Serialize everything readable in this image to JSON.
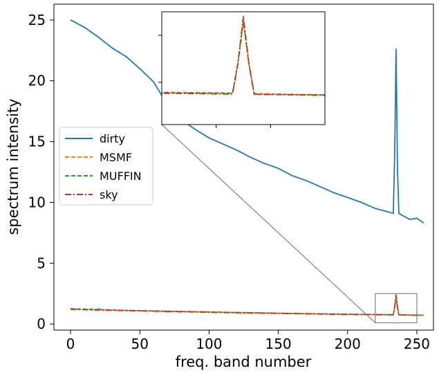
{
  "chart_data": {
    "type": "line",
    "xlabel": "freq. band number",
    "ylabel": "spectrum intensity",
    "xlim": [
      -12,
      262
    ],
    "ylim": [
      -0.5,
      26.3
    ],
    "xticks": [
      0,
      50,
      100,
      150,
      200,
      250
    ],
    "yticks": [
      0,
      5,
      10,
      15,
      20,
      25
    ],
    "legend": {
      "placement": "center-left"
    },
    "series": [
      {
        "name": "dirty",
        "color": "#1f77b4",
        "style": "solid",
        "points": [
          [
            0,
            25.0
          ],
          [
            10,
            24.4
          ],
          [
            20,
            23.6
          ],
          [
            30,
            22.7
          ],
          [
            40,
            22.0
          ],
          [
            50,
            21.0
          ],
          [
            60,
            19.9
          ],
          [
            70,
            18.0
          ],
          [
            80,
            16.8
          ],
          [
            90,
            16.0
          ],
          [
            100,
            15.3
          ],
          [
            110,
            14.8
          ],
          [
            120,
            14.3
          ],
          [
            130,
            13.7
          ],
          [
            140,
            13.2
          ],
          [
            150,
            12.8
          ],
          [
            160,
            12.2
          ],
          [
            170,
            11.8
          ],
          [
            180,
            11.3
          ],
          [
            190,
            10.8
          ],
          [
            200,
            10.4
          ],
          [
            210,
            10.0
          ],
          [
            220,
            9.5
          ],
          [
            230,
            9.2
          ],
          [
            233,
            9.1
          ],
          [
            234,
            14.0
          ],
          [
            235,
            22.6
          ],
          [
            236,
            13.0
          ],
          [
            237,
            9.1
          ],
          [
            240,
            8.9
          ],
          [
            245,
            8.6
          ],
          [
            250,
            8.7
          ],
          [
            255,
            8.3
          ]
        ]
      },
      {
        "name": "MSMF",
        "color": "#ff7f0e",
        "style": "dashed",
        "points": [
          [
            0,
            1.22
          ],
          [
            50,
            1.08
          ],
          [
            100,
            0.98
          ],
          [
            150,
            0.88
          ],
          [
            200,
            0.8
          ],
          [
            233,
            0.76
          ],
          [
            234,
            1.4
          ],
          [
            235,
            2.3
          ],
          [
            236,
            1.4
          ],
          [
            237,
            0.76
          ],
          [
            255,
            0.72
          ]
        ]
      },
      {
        "name": "MUFFIN",
        "color": "#2ca02c",
        "style": "dashed",
        "points": [
          [
            0,
            1.25
          ],
          [
            20,
            1.2
          ],
          [
            21,
            1.35
          ],
          [
            22,
            1.18
          ],
          [
            50,
            1.1
          ],
          [
            100,
            0.99
          ],
          [
            150,
            0.89
          ],
          [
            200,
            0.81
          ],
          [
            233,
            0.77
          ],
          [
            234,
            1.4
          ],
          [
            235,
            2.3
          ],
          [
            236,
            1.4
          ],
          [
            237,
            0.74
          ],
          [
            255,
            0.73
          ]
        ]
      },
      {
        "name": "sky",
        "color": "#d62728",
        "style": "dashdot",
        "points": [
          [
            0,
            1.2
          ],
          [
            50,
            1.08
          ],
          [
            100,
            0.97
          ],
          [
            150,
            0.87
          ],
          [
            200,
            0.79
          ],
          [
            233,
            0.75
          ],
          [
            234,
            1.4
          ],
          [
            235,
            2.4
          ],
          [
            236,
            1.4
          ],
          [
            237,
            0.75
          ],
          [
            255,
            0.71
          ]
        ]
      }
    ],
    "inset": {
      "xlim": [
        220,
        250
      ],
      "ylim": [
        0.1,
        2.5
      ],
      "xticks": [
        230,
        240
      ],
      "yticks": [
        1,
        2
      ]
    }
  }
}
